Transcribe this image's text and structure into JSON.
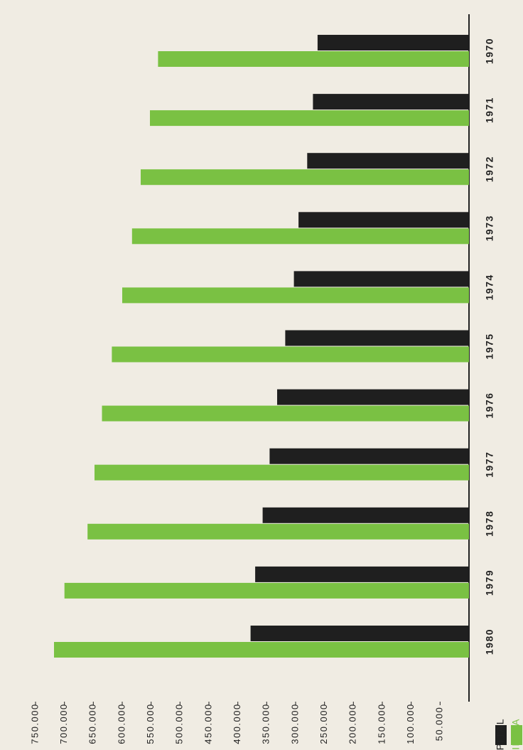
{
  "chart_data": {
    "type": "bar",
    "orientation": "horizontal",
    "categories": [
      "1970",
      "1971",
      "1972",
      "1973",
      "1974",
      "1975",
      "1976",
      "1977",
      "1978",
      "1979",
      "1980"
    ],
    "series": [
      {
        "name": "CAPITAL",
        "color": "#1f1f1f",
        "values": [
          262000,
          270000,
          280000,
          295000,
          303000,
          318000,
          332000,
          345000,
          357000,
          370000,
          378000
        ]
      },
      {
        "name": "PROVINCIA",
        "color": "#7ac143",
        "values": [
          538000,
          552000,
          568000,
          583000,
          600000,
          618000,
          635000,
          648000,
          660000,
          700000,
          718000
        ]
      }
    ],
    "xlim": [
      0,
      750000
    ],
    "tick_labels": [
      "50.000",
      "100.000",
      "150.000",
      "200.000",
      "250.000",
      "300.000",
      "350.000",
      "400.000",
      "450.000",
      "500.000",
      "550.000",
      "600.000",
      "650.000",
      "700.000",
      "750.000"
    ],
    "tick_values": [
      50000,
      100000,
      150000,
      200000,
      250000,
      300000,
      350000,
      400000,
      450000,
      500000,
      550000,
      600000,
      650000,
      700000,
      750000
    ],
    "legend_position": "bottom-left",
    "title": "",
    "xlabel": "",
    "ylabel": ""
  }
}
